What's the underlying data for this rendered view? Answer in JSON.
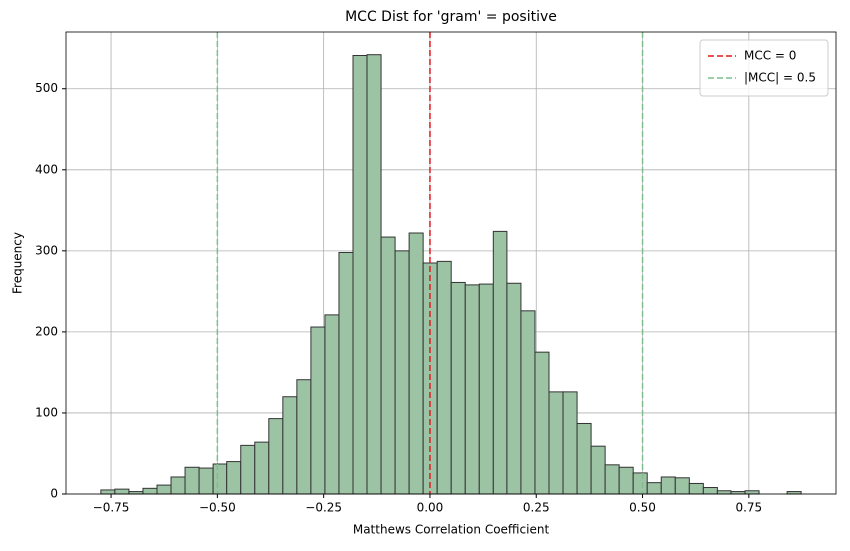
{
  "chart_data": {
    "type": "histogram",
    "title": "MCC Dist for 'gram' = positive",
    "x_label": "Matthews Correlation Coefficient",
    "y_label": "Frequency",
    "bins": [
      -0.774,
      -0.741,
      -0.708,
      -0.675,
      -0.642,
      -0.609,
      -0.576,
      -0.543,
      -0.51,
      -0.478,
      -0.445,
      -0.412,
      -0.379,
      -0.346,
      -0.313,
      -0.28,
      -0.247,
      -0.214,
      -0.181,
      -0.148,
      -0.115,
      -0.082,
      -0.049,
      -0.016,
      0.017,
      0.05,
      0.083,
      0.116,
      0.149,
      0.181,
      0.214,
      0.247,
      0.28,
      0.313,
      0.346,
      0.379,
      0.412,
      0.445,
      0.478,
      0.511,
      0.544,
      0.577,
      0.61,
      0.643,
      0.676,
      0.708,
      0.741,
      0.774,
      0.807,
      0.84,
      0.873
    ],
    "values": [
      5,
      6,
      3,
      7,
      11,
      21,
      33,
      32,
      37,
      40,
      60,
      64,
      93,
      120,
      141,
      206,
      221,
      298,
      541,
      542,
      317,
      300,
      322,
      285,
      287,
      261,
      258,
      259,
      324,
      260,
      226,
      175,
      126,
      126,
      87,
      59,
      36,
      33,
      26,
      14,
      21,
      20,
      13,
      8,
      4,
      3,
      4,
      0,
      0,
      3
    ],
    "color": "#9dc3a5",
    "edgecolor": "#333333",
    "vlines": [
      {
        "name": "MCC = 0",
        "color": "#e31a1c",
        "x": [
          0
        ]
      },
      {
        "name": "|MCC| = 0.5",
        "color": "#7fbf8f",
        "x": [
          -0.5,
          0.5
        ]
      }
    ],
    "xlim": [
      -0.856,
      0.955
    ],
    "ylim": [
      0,
      570
    ],
    "xticks": [
      {
        "value": -0.75,
        "label": "−0.75"
      },
      {
        "value": -0.5,
        "label": "−0.50"
      },
      {
        "value": -0.25,
        "label": "−0.25"
      },
      {
        "value": 0,
        "label": "0.00"
      },
      {
        "value": 0.25,
        "label": "0.25"
      },
      {
        "value": 0.5,
        "label": "0.50"
      },
      {
        "value": 0.75,
        "label": "0.75"
      }
    ],
    "yticks": [
      0,
      100,
      200,
      300,
      400,
      500
    ],
    "grid": true,
    "legend": "upper-right"
  }
}
